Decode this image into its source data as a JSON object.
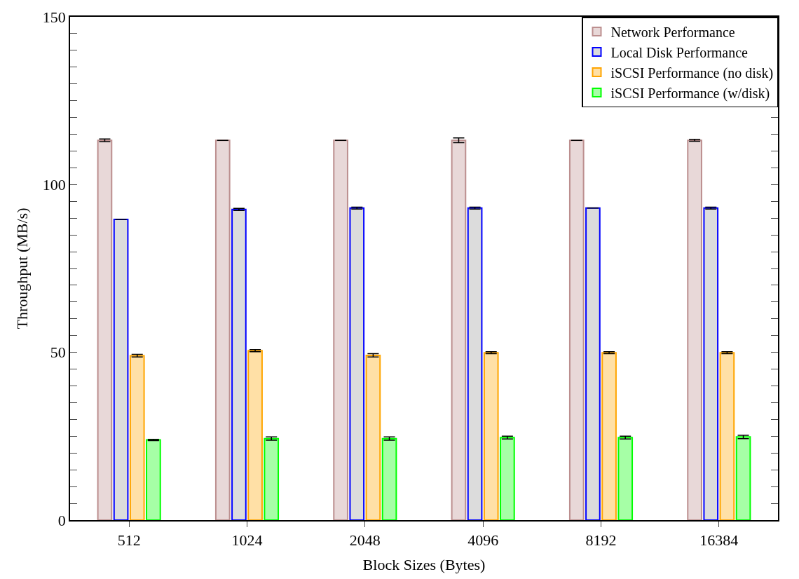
{
  "chart_data": {
    "type": "bar",
    "xlabel": "Block Sizes (Bytes)",
    "ylabel": "Throughput (MB/s)",
    "categories": [
      "512",
      "1024",
      "2048",
      "4096",
      "8192",
      "16384"
    ],
    "series": [
      {
        "name": "Network Performance",
        "color": "#bc8f8f",
        "values": [
          113.2,
          113.2,
          113.2,
          113.2,
          113.2,
          113.2
        ],
        "errors": [
          0.4,
          null,
          null,
          0.7,
          null,
          0.3
        ]
      },
      {
        "name": "Local Disk Performance",
        "color": "#0000ff",
        "values": [
          89.6,
          92.6,
          93.0,
          93.0,
          93.0,
          93.0
        ],
        "errors": [
          null,
          0.3,
          0.3,
          0.3,
          null,
          0.3
        ]
      },
      {
        "name": "iSCSI Performance (no disk)",
        "color": "#ffa500",
        "values": [
          49.0,
          50.5,
          49.1,
          49.9,
          49.9,
          49.9
        ],
        "errors": [
          0.4,
          0.3,
          0.5,
          0.3,
          0.3,
          0.3
        ]
      },
      {
        "name": "iSCSI Performance (w/disk)",
        "color": "#00ff00",
        "values": [
          23.9,
          24.3,
          24.3,
          24.6,
          24.6,
          24.8
        ],
        "errors": [
          0.2,
          0.5,
          0.5,
          0.4,
          0.4,
          0.5
        ]
      }
    ],
    "ylim": [
      0,
      150
    ],
    "yticks": [
      0,
      {
        "value": 5,
        "label": null
      },
      {
        "value": 10,
        "label": null
      },
      {
        "value": 15,
        "label": null
      },
      {
        "value": 20,
        "label": null
      },
      {
        "value": 25,
        "label": null
      },
      {
        "value": 30,
        "label": null
      },
      {
        "value": 35,
        "label": null
      },
      {
        "value": 40,
        "label": null
      },
      {
        "value": 45,
        "label": null
      },
      50,
      {
        "value": 55,
        "label": null
      },
      {
        "value": 60,
        "label": null
      },
      {
        "value": 65,
        "label": null
      },
      {
        "value": 70,
        "label": null
      },
      {
        "value": 75,
        "label": null
      },
      {
        "value": 80,
        "label": null
      },
      {
        "value": 85,
        "label": null
      },
      {
        "value": 90,
        "label": null
      },
      {
        "value": 95,
        "label": null
      },
      100,
      {
        "value": 105,
        "label": null
      },
      {
        "value": 110,
        "label": null
      },
      {
        "value": 115,
        "label": null
      },
      {
        "value": 120,
        "label": null
      },
      {
        "value": 125,
        "label": null
      },
      {
        "value": 130,
        "label": null
      },
      {
        "value": 135,
        "label": null
      },
      {
        "value": 140,
        "label": null
      },
      {
        "value": 145,
        "label": null
      },
      150
    ],
    "legend": "top right"
  }
}
